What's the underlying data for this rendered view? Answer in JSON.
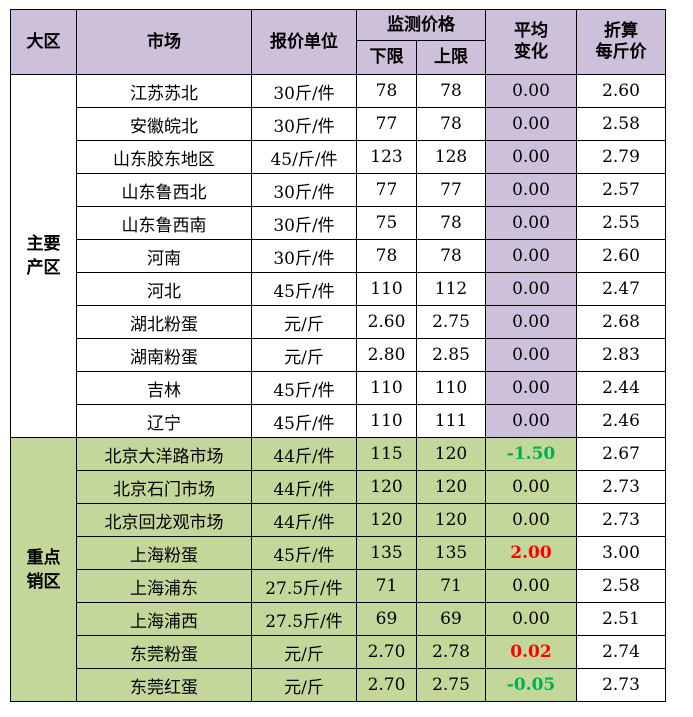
{
  "header": {
    "region": "大区",
    "market": "市场",
    "unit": "报价单位",
    "monitor_price": "监测价格",
    "lower": "下限",
    "upper": "上限",
    "avg_change_1": "平均",
    "avg_change_2": "变化",
    "per_jin_1": "折算",
    "per_jin_2": "每斤价"
  },
  "groups": [
    {
      "region_1": "主要",
      "region_2": "产区",
      "rows": [
        {
          "market": "江苏苏北",
          "unit": "30斤/件",
          "lower": "78",
          "upper": "78",
          "change": "0.00",
          "price": "2.60"
        },
        {
          "market": "安徽皖北",
          "unit": "30斤/件",
          "lower": "77",
          "upper": "78",
          "change": "0.00",
          "price": "2.58"
        },
        {
          "market": "山东胶东地区",
          "unit": "45/斤/件",
          "lower": "123",
          "upper": "128",
          "change": "0.00",
          "price": "2.79"
        },
        {
          "market": "山东鲁西北",
          "unit": "30斤/件",
          "lower": "77",
          "upper": "77",
          "change": "0.00",
          "price": "2.57"
        },
        {
          "market": "山东鲁西南",
          "unit": "30斤/件",
          "lower": "75",
          "upper": "78",
          "change": "0.00",
          "price": "2.55"
        },
        {
          "market": "河南",
          "unit": "30斤/件",
          "lower": "78",
          "upper": "78",
          "change": "0.00",
          "price": "2.60"
        },
        {
          "market": "河北",
          "unit": "45斤/件",
          "lower": "110",
          "upper": "112",
          "change": "0.00",
          "price": "2.47"
        },
        {
          "market": "湖北粉蛋",
          "unit": "元/斤",
          "lower": "2.60",
          "upper": "2.75",
          "change": "0.00",
          "price": "2.68"
        },
        {
          "market": "湖南粉蛋",
          "unit": "元/斤",
          "lower": "2.80",
          "upper": "2.85",
          "change": "0.00",
          "price": "2.83"
        },
        {
          "market": "吉林",
          "unit": "45斤/件",
          "lower": "110",
          "upper": "110",
          "change": "0.00",
          "price": "2.44"
        },
        {
          "market": "辽宁",
          "unit": "45斤/件",
          "lower": "110",
          "upper": "111",
          "change": "0.00",
          "price": "2.46"
        }
      ]
    },
    {
      "region_1": "重点",
      "region_2": "销区",
      "rows": [
        {
          "market": "北京大洋路市场",
          "unit": "44斤/件",
          "lower": "115",
          "upper": "120",
          "change": "-1.50",
          "trend": "neg",
          "price": "2.67"
        },
        {
          "market": "北京石门市场",
          "unit": "44斤/件",
          "lower": "120",
          "upper": "120",
          "change": "0.00",
          "price": "2.73"
        },
        {
          "market": "北京回龙观市场",
          "unit": "44斤/件",
          "lower": "120",
          "upper": "120",
          "change": "0.00",
          "price": "2.73"
        },
        {
          "market": "上海粉蛋",
          "unit": "45斤/件",
          "lower": "135",
          "upper": "135",
          "change": "2.00",
          "trend": "pos",
          "price": "3.00"
        },
        {
          "market": "上海浦东",
          "unit": "27.5斤/件",
          "lower": "71",
          "upper": "71",
          "change": "0.00",
          "price": "2.58"
        },
        {
          "market": "上海浦西",
          "unit": "27.5斤/件",
          "lower": "69",
          "upper": "69",
          "change": "0.00",
          "price": "2.51"
        },
        {
          "market": "东莞粉蛋",
          "unit": "元/斤",
          "lower": "2.70",
          "upper": "2.78",
          "change": "0.02",
          "trend": "pos",
          "price": "2.74"
        },
        {
          "market": "东莞红蛋",
          "unit": "元/斤",
          "lower": "2.70",
          "upper": "2.75",
          "change": "-0.05",
          "trend": "neg",
          "price": "2.73"
        }
      ]
    }
  ],
  "colors": {
    "header_bg": "#ccc0da",
    "sales_bg": "#c4d79b",
    "negative": "#00b050",
    "positive": "#ff0000"
  }
}
